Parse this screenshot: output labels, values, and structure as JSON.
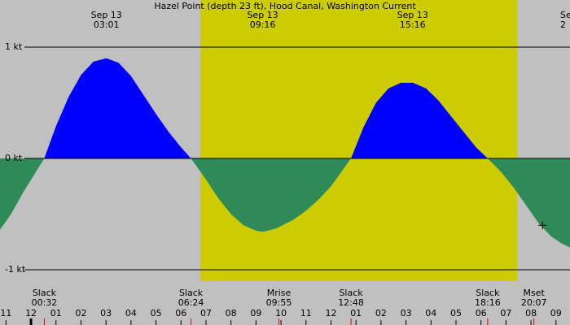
{
  "chart_data": {
    "type": "current",
    "title": "Hazel Point (depth 23 ft), Hood Canal, Washington Current",
    "xlim": [
      -1.24,
      21.56
    ],
    "ylim": [
      -1.19,
      1.42
    ],
    "yticks": [
      {
        "value": 1,
        "label": "1 kt"
      },
      {
        "value": 0,
        "label": "0 kt"
      },
      {
        "value": -1,
        "label": "-1 kt"
      }
    ],
    "xticks": [
      {
        "value": -1,
        "label": "11"
      },
      {
        "value": 0,
        "label": "12"
      },
      {
        "value": 1,
        "label": "01"
      },
      {
        "value": 2,
        "label": "02"
      },
      {
        "value": 3,
        "label": "03"
      },
      {
        "value": 4,
        "label": "04"
      },
      {
        "value": 5,
        "label": "05"
      },
      {
        "value": 6,
        "label": "06"
      },
      {
        "value": 7,
        "label": "07"
      },
      {
        "value": 8,
        "label": "08"
      },
      {
        "value": 9,
        "label": "09"
      },
      {
        "value": 10,
        "label": "10"
      },
      {
        "value": 11,
        "label": "11"
      },
      {
        "value": 12,
        "label": "12"
      },
      {
        "value": 13,
        "label": "01"
      },
      {
        "value": 14,
        "label": "02"
      },
      {
        "value": 15,
        "label": "03"
      },
      {
        "value": 16,
        "label": "04"
      },
      {
        "value": 17,
        "label": "05"
      },
      {
        "value": 18,
        "label": "06"
      },
      {
        "value": 19,
        "label": "07"
      },
      {
        "value": 20,
        "label": "08"
      },
      {
        "value": 21,
        "label": "09"
      }
    ],
    "daylight": [
      6.78,
      19.45
    ],
    "x": [
      -1.24,
      -0.8,
      -0.3,
      0.53,
      1.0,
      1.5,
      2.0,
      2.5,
      3.02,
      3.5,
      4.0,
      4.5,
      5.0,
      5.5,
      6.0,
      6.4,
      7.0,
      7.5,
      8.0,
      8.5,
      9.0,
      9.27,
      9.8,
      10.5,
      11.0,
      11.5,
      12.0,
      12.8,
      13.3,
      13.8,
      14.3,
      14.8,
      15.27,
      15.8,
      16.3,
      16.8,
      17.3,
      17.8,
      18.27,
      18.8,
      19.3,
      19.8,
      20.3,
      20.8,
      21.2,
      21.56
    ],
    "series": [
      {
        "name": "Current",
        "color_flood": "#0000ff",
        "color_ebb": "#2e8b57",
        "values": [
          -0.64,
          -0.5,
          -0.3,
          0,
          0.29,
          0.55,
          0.75,
          0.87,
          0.9,
          0.86,
          0.74,
          0.57,
          0.4,
          0.24,
          0.1,
          0,
          -0.19,
          -0.36,
          -0.5,
          -0.6,
          -0.65,
          -0.66,
          -0.63,
          -0.55,
          -0.47,
          -0.37,
          -0.25,
          0,
          0.28,
          0.5,
          0.63,
          0.68,
          0.68,
          0.63,
          0.52,
          0.38,
          0.24,
          0.1,
          0,
          -0.12,
          -0.26,
          -0.42,
          -0.58,
          -0.7,
          -0.76,
          -0.8
        ]
      }
    ],
    "peaks": [
      {
        "date": "Sep 13",
        "time": "03:01"
      },
      {
        "date": "Sep 13",
        "time": "09:16"
      },
      {
        "date": "Sep 13",
        "time": "15:16"
      },
      {
        "date": "Se",
        "time": "2"
      }
    ],
    "events": [
      {
        "name": "Slack",
        "time": "00:32"
      },
      {
        "name": "Slack",
        "time": "06:24"
      },
      {
        "name": "Mrise",
        "time": "09:55"
      },
      {
        "name": "Slack",
        "time": "12:48"
      },
      {
        "name": "Slack",
        "time": "18:16"
      },
      {
        "name": "Mset",
        "time": "20:07"
      }
    ],
    "marker": {
      "x": 20.46,
      "value": -0.6
    }
  }
}
